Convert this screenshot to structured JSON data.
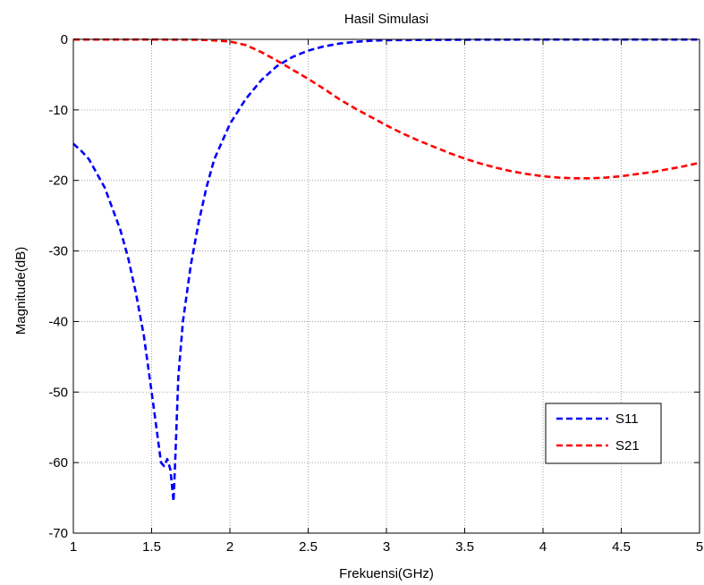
{
  "chart_data": {
    "type": "line",
    "title": "Hasil Simulasi",
    "xlabel": "Frekuensi(GHz)",
    "ylabel": "Magnitude(dB)",
    "xlim": [
      1,
      5
    ],
    "ylim": [
      -70,
      0
    ],
    "xticks": [
      1,
      1.5,
      2,
      2.5,
      3,
      3.5,
      4,
      4.5,
      5
    ],
    "yticks": [
      0,
      -10,
      -20,
      -30,
      -40,
      -50,
      -60,
      -70
    ],
    "xtick_labels": [
      "1",
      "1.5",
      "2",
      "2.5",
      "3",
      "3.5",
      "4",
      "4.5",
      "5"
    ],
    "ytick_labels": [
      "0",
      "-10",
      "-20",
      "-30",
      "-40",
      "-50",
      "-60",
      "-70"
    ],
    "grid": true,
    "legend_position": "lower-right",
    "series": [
      {
        "name": "S11",
        "color": "#0000ff",
        "style": "dashed",
        "x": [
          1.0,
          1.05,
          1.1,
          1.15,
          1.2,
          1.25,
          1.3,
          1.35,
          1.4,
          1.45,
          1.5,
          1.53,
          1.56,
          1.58,
          1.6,
          1.62,
          1.64,
          1.65,
          1.67,
          1.7,
          1.75,
          1.8,
          1.85,
          1.9,
          1.95,
          2.0,
          2.1,
          2.2,
          2.3,
          2.4,
          2.5,
          2.6,
          2.7,
          2.8,
          2.9,
          3.0,
          3.5,
          4.0,
          4.5,
          5.0
        ],
        "y": [
          -14.8,
          -15.8,
          -17.0,
          -19.0,
          -21.0,
          -24.0,
          -27.0,
          -31.0,
          -36.0,
          -42.0,
          -50.0,
          -55.0,
          -60.0,
          -60.5,
          -59.5,
          -61.0,
          -65.5,
          -60.0,
          -48.0,
          -40.0,
          -32.0,
          -26.0,
          -21.0,
          -17.0,
          -14.5,
          -12.0,
          -8.5,
          -5.8,
          -3.8,
          -2.5,
          -1.6,
          -1.0,
          -0.6,
          -0.35,
          -0.2,
          -0.12,
          -0.05,
          -0.02,
          -0.02,
          -0.02
        ]
      },
      {
        "name": "S21",
        "color": "#ff0000",
        "style": "dashed",
        "x": [
          1.0,
          1.5,
          1.8,
          1.9,
          2.0,
          2.1,
          2.2,
          2.3,
          2.4,
          2.5,
          2.6,
          2.7,
          2.8,
          2.9,
          3.0,
          3.1,
          3.2,
          3.3,
          3.4,
          3.5,
          3.6,
          3.7,
          3.8,
          3.9,
          4.0,
          4.1,
          4.2,
          4.3,
          4.4,
          4.5,
          4.6,
          4.7,
          4.8,
          4.9,
          5.0
        ],
        "y": [
          -0.02,
          -0.02,
          -0.05,
          -0.15,
          -0.3,
          -0.8,
          -1.8,
          -3.0,
          -4.3,
          -5.6,
          -7.0,
          -8.5,
          -9.8,
          -11.0,
          -12.2,
          -13.3,
          -14.3,
          -15.2,
          -16.1,
          -16.9,
          -17.6,
          -18.2,
          -18.7,
          -19.1,
          -19.4,
          -19.6,
          -19.7,
          -19.7,
          -19.6,
          -19.4,
          -19.1,
          -18.8,
          -18.4,
          -18.0,
          -17.5
        ]
      }
    ]
  }
}
